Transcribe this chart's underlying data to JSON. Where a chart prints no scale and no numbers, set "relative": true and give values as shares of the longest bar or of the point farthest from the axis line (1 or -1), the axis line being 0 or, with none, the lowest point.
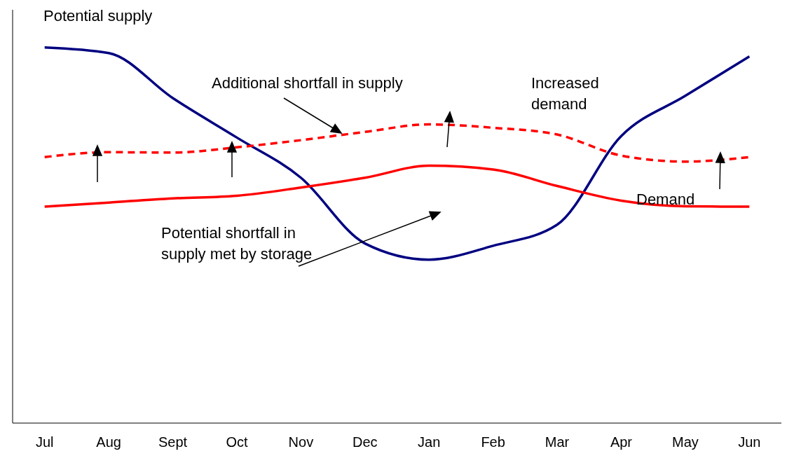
{
  "chart_data": {
    "type": "line",
    "relative": true,
    "categories": [
      "Jul",
      "Aug",
      "Sept",
      "Oct",
      "Nov",
      "Dec",
      "Jan",
      "Feb",
      "Mar",
      "Apr",
      "May",
      "Jun"
    ],
    "series": [
      {
        "name": "Potential supply",
        "color": "#000080",
        "values": [
          1.0,
          0.985,
          0.865,
          0.76,
          0.653,
          0.478,
          0.435,
          0.472,
          0.528,
          0.764,
          0.871,
          0.976
        ]
      },
      {
        "name": "Demand",
        "color": "#ff0000",
        "values": [
          0.576,
          0.587,
          0.598,
          0.605,
          0.627,
          0.653,
          0.685,
          0.675,
          0.631,
          0.592,
          0.577,
          0.576
        ]
      },
      {
        "name": "Increased demand",
        "color": "#ff0000",
        "line_style": "dashed",
        "values": [
          0.708,
          0.721,
          0.72,
          0.734,
          0.753,
          0.775,
          0.795,
          0.786,
          0.768,
          0.712,
          0.696,
          0.708
        ]
      }
    ],
    "annotations": [
      "Additional shortfall in supply",
      "Potential shortfall in supply met by storage"
    ],
    "grid": false,
    "legend": false,
    "marker": "none",
    "line_style": "solid"
  }
}
